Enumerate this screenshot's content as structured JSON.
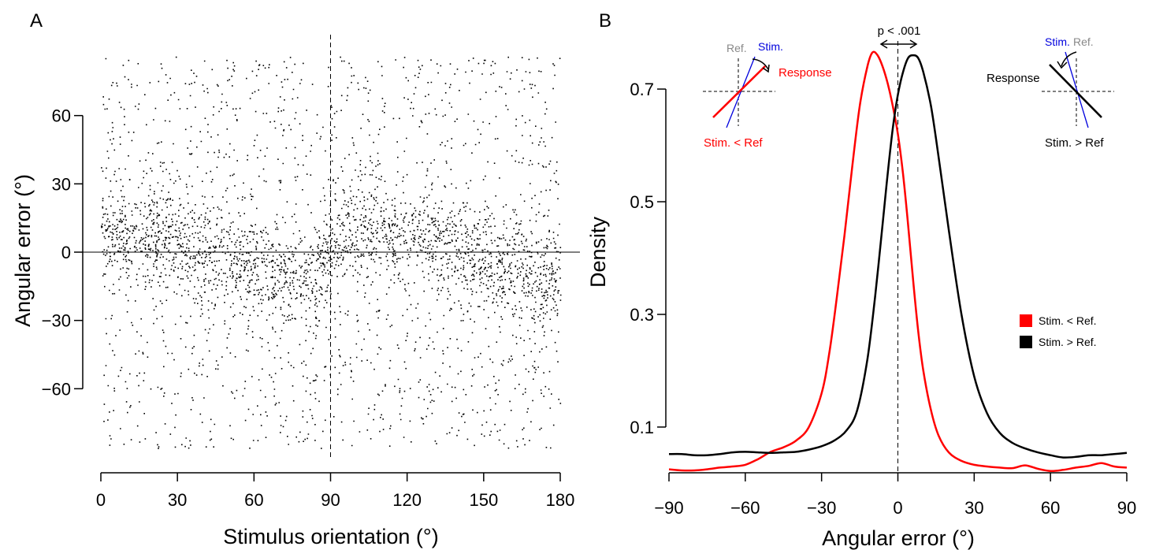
{
  "chart_data": [
    {
      "panel": "A",
      "type": "scatter",
      "xlabel": "Stimulus orientation (°)",
      "ylabel": "Angular error (°)",
      "xlim": [
        0,
        180
      ],
      "ylim": [
        -90,
        90
      ],
      "xticks": [
        "0",
        "30",
        "60",
        "90",
        "120",
        "150",
        "180"
      ],
      "yticks": [
        "−60",
        "−30",
        "0",
        "30",
        "60"
      ],
      "xtick_values": [
        0,
        30,
        60,
        90,
        120,
        150,
        180
      ],
      "ytick_values": [
        -60,
        -30,
        0,
        30,
        60
      ],
      "reference_lines": {
        "vertical_dashed_x": 90,
        "horizontal_solid_y": 0
      },
      "point_color": "#000000",
      "scatter_description_trend": {
        "x": [
          0,
          20,
          40,
          60,
          75,
          89,
          91,
          110,
          130,
          150,
          170,
          180
        ],
        "mean_error": [
          8,
          6,
          0,
          -7,
          -12,
          -4,
          4,
          13,
          5,
          -4,
          -12,
          -6
        ]
      }
    },
    {
      "panel": "B",
      "type": "line",
      "xlabel": "Angular error (°)",
      "ylabel": "Density",
      "xlim": [
        -90,
        90
      ],
      "ylim": [
        0.03,
        0.77
      ],
      "xticks": [
        "−90",
        "−60",
        "−30",
        "0",
        "30",
        "60",
        "90"
      ],
      "yticks": [
        "0.1",
        "0.3",
        "0.5",
        "0.7"
      ],
      "xtick_values": [
        -90,
        -60,
        -30,
        0,
        30,
        60,
        90
      ],
      "ytick_values": [
        0.1,
        0.3,
        0.5,
        0.7
      ],
      "reference_lines": {
        "vertical_dashed_x": 0
      },
      "annotation": "p < .001",
      "legend_position": "right",
      "series": [
        {
          "name": "Stim. < Ref.",
          "color": "#ff0000",
          "x": [
            -90,
            -85,
            -80,
            -75,
            -70,
            -65,
            -60,
            -55,
            -50,
            -45,
            -40,
            -35,
            -30,
            -27,
            -24,
            -21,
            -18,
            -15,
            -12,
            -10,
            -8,
            -6,
            -4,
            -2,
            0,
            2,
            4,
            6,
            8,
            10,
            13,
            16,
            20,
            25,
            30,
            35,
            40,
            45,
            50,
            55,
            60,
            65,
            70,
            75,
            80,
            85,
            90
          ],
          "y": [
            0.025,
            0.023,
            0.023,
            0.025,
            0.028,
            0.03,
            0.033,
            0.043,
            0.056,
            0.064,
            0.076,
            0.1,
            0.16,
            0.23,
            0.33,
            0.44,
            0.56,
            0.67,
            0.74,
            0.765,
            0.76,
            0.74,
            0.71,
            0.67,
            0.62,
            0.55,
            0.46,
            0.36,
            0.27,
            0.2,
            0.13,
            0.085,
            0.055,
            0.04,
            0.033,
            0.03,
            0.028,
            0.027,
            0.032,
            0.026,
            0.022,
            0.024,
            0.028,
            0.031,
            0.036,
            0.03,
            0.028
          ]
        },
        {
          "name": "Stim. > Ref.",
          "color": "#000000",
          "x": [
            -90,
            -85,
            -80,
            -75,
            -70,
            -65,
            -60,
            -55,
            -50,
            -45,
            -40,
            -35,
            -30,
            -25,
            -20,
            -16,
            -12,
            -9,
            -6,
            -4,
            -2,
            0,
            2,
            4,
            6,
            8,
            10,
            13,
            16,
            20,
            25,
            30,
            35,
            40,
            45,
            50,
            55,
            60,
            65,
            70,
            75,
            80,
            85,
            90
          ],
          "y": [
            0.052,
            0.052,
            0.05,
            0.05,
            0.052,
            0.055,
            0.056,
            0.055,
            0.054,
            0.055,
            0.056,
            0.06,
            0.066,
            0.076,
            0.095,
            0.13,
            0.22,
            0.33,
            0.46,
            0.55,
            0.63,
            0.69,
            0.73,
            0.755,
            0.76,
            0.755,
            0.73,
            0.67,
            0.58,
            0.45,
            0.3,
            0.19,
            0.125,
            0.09,
            0.072,
            0.062,
            0.055,
            0.05,
            0.046,
            0.047,
            0.05,
            0.05,
            0.052,
            0.054
          ]
        }
      ]
    }
  ],
  "panels": {
    "a_label": "A",
    "b_label": "B"
  },
  "insets": {
    "left": {
      "ref_label": "Ref.",
      "stim_label": "Stim.",
      "response_label": "Response",
      "condition_label": "Stim. < Ref"
    },
    "right": {
      "ref_label": "Ref.",
      "stim_label": "Stim.",
      "response_label": "Response",
      "condition_label": "Stim. > Ref"
    }
  },
  "colors": {
    "red": "#ff0000",
    "blue": "#0000dd",
    "gray": "#888888",
    "black": "#000000"
  }
}
